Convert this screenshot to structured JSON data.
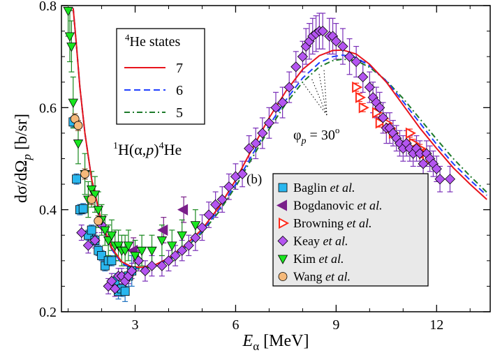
{
  "chart_data": {
    "type": "scatter",
    "title": "",
    "xlabel": "E",
    "xlabel_sub": "α",
    "xlabel_unit": " [MeV]",
    "ylabel": "dσ/dΩ",
    "ylabel_sub": "p",
    "ylabel_unit": " [b/sr]",
    "xlim": [
      0.8,
      13.6
    ],
    "ylim": [
      0.2,
      0.8
    ],
    "x_ticks": [
      3,
      6,
      9,
      12
    ],
    "y_ticks": [
      0.2,
      0.4,
      0.6,
      0.8
    ],
    "x_tick_labels": [
      "3",
      "6",
      "9",
      "12"
    ],
    "y_tick_labels": [
      "0.2",
      "0.4",
      "0.6",
      "0.8"
    ],
    "grid": false,
    "reaction_label": {
      "pre_sup": "1",
      "a": "H(α,",
      "p": "p",
      "b": ")",
      "post_sup": "4",
      "c": "He"
    },
    "panel_label": "(b)",
    "angle_label": {
      "phi": "φ",
      "sub": "p",
      "eq": " = 30",
      "sup": "o"
    },
    "curves_legend": {
      "title_sup": "4",
      "title": "He states",
      "entries": [
        {
          "label": "7",
          "color": "#e8141c",
          "dash": "solid"
        },
        {
          "label": "6",
          "color": "#1f3fff",
          "dash": "dashed"
        },
        {
          "label": "5",
          "color": "#1d7a2a",
          "dash": "dashdot"
        }
      ]
    },
    "curves": [
      {
        "name": "7",
        "color": "#e8141c",
        "x": [
          1.15,
          1.25,
          1.35,
          1.5,
          1.7,
          2.0,
          2.3,
          2.6,
          2.9,
          3.2,
          3.6,
          4.0,
          4.5,
          5.0,
          5.5,
          6.0,
          6.5,
          7.0,
          7.5,
          8.0,
          8.5,
          8.9,
          9.2,
          9.6,
          10.0,
          10.5,
          11.0,
          11.5,
          12.0,
          12.5,
          13.0,
          13.5
        ],
        "y": [
          0.795,
          0.72,
          0.64,
          0.55,
          0.46,
          0.375,
          0.325,
          0.298,
          0.288,
          0.287,
          0.292,
          0.305,
          0.33,
          0.362,
          0.405,
          0.458,
          0.52,
          0.58,
          0.632,
          0.675,
          0.702,
          0.712,
          0.713,
          0.705,
          0.685,
          0.65,
          0.605,
          0.56,
          0.52,
          0.482,
          0.45,
          0.42
        ]
      },
      {
        "name": "6",
        "color": "#1f3fff",
        "x": [
          1.15,
          1.25,
          1.35,
          1.5,
          1.7,
          2.0,
          2.3,
          2.6,
          2.9,
          3.2,
          3.6,
          4.0,
          4.5,
          5.0,
          5.5,
          6.0,
          6.5,
          7.0,
          7.5,
          8.0,
          8.5,
          8.9,
          9.2,
          9.6,
          10.0,
          10.5,
          11.0,
          11.5,
          12.0,
          12.5,
          13.0,
          13.5
        ],
        "y": [
          0.795,
          0.72,
          0.64,
          0.55,
          0.46,
          0.373,
          0.322,
          0.295,
          0.285,
          0.284,
          0.289,
          0.302,
          0.326,
          0.358,
          0.4,
          0.45,
          0.508,
          0.565,
          0.615,
          0.658,
          0.688,
          0.7,
          0.703,
          0.698,
          0.682,
          0.652,
          0.612,
          0.57,
          0.528,
          0.49,
          0.458,
          0.428
        ]
      },
      {
        "name": "5",
        "color": "#1d7a2a",
        "x": [
          1.15,
          1.25,
          1.35,
          1.5,
          1.7,
          2.0,
          2.3,
          2.6,
          2.9,
          3.2,
          3.6,
          4.0,
          4.5,
          5.0,
          5.5,
          6.0,
          6.5,
          7.0,
          7.5,
          8.0,
          8.5,
          8.9,
          9.2,
          9.6,
          10.0,
          10.5,
          11.0,
          11.5,
          12.0,
          12.5,
          13.0,
          13.5
        ],
        "y": [
          0.795,
          0.72,
          0.64,
          0.55,
          0.46,
          0.373,
          0.322,
          0.295,
          0.285,
          0.284,
          0.289,
          0.302,
          0.325,
          0.355,
          0.396,
          0.445,
          0.502,
          0.558,
          0.608,
          0.65,
          0.68,
          0.692,
          0.695,
          0.692,
          0.679,
          0.653,
          0.618,
          0.578,
          0.538,
          0.5,
          0.466,
          0.434
        ]
      }
    ],
    "series": [
      {
        "name": "Baglin",
        "name_italic": "et al.",
        "marker": "square",
        "color": "#29b7ef",
        "x": [
          1.15,
          1.25,
          1.35,
          1.45,
          1.6,
          1.7,
          1.8,
          1.9,
          2.0,
          2.1,
          2.2,
          2.3,
          2.4,
          2.5,
          2.6,
          2.7,
          2.8,
          2.9
        ],
        "y": [
          0.572,
          0.46,
          0.4,
          0.402,
          0.35,
          0.36,
          0.34,
          0.32,
          0.31,
          0.29,
          0.3,
          0.3,
          0.26,
          0.24,
          0.245,
          0.24,
          0.27,
          0.28
        ],
        "err": [
          0.01,
          0.01,
          0.01,
          0.01,
          0.01,
          0.01,
          0.01,
          0.01,
          0.01,
          0.01,
          0.01,
          0.01,
          0.015,
          0.015,
          0.015,
          0.02,
          0.02,
          0.03
        ]
      },
      {
        "name": "Bogdanovic",
        "name_italic": "et al.",
        "marker": "triangle-left",
        "color": "#d6a96f",
        "x": [
          2.95,
          3.85,
          4.45
        ],
        "y": [
          0.32,
          0.36,
          0.4
        ],
        "err": [
          0.025,
          0.025,
          0.025
        ]
      },
      {
        "name": "Browning",
        "name_italic": "et al.",
        "marker": "triangle-right",
        "color": "#ff2a1a",
        "x": [
          9.6,
          9.7,
          9.8,
          10.2,
          10.3,
          10.5,
          10.6,
          10.7,
          11.2,
          11.3,
          11.5,
          11.6,
          11.7
        ],
        "y": [
          0.64,
          0.62,
          0.6,
          0.59,
          0.57,
          0.57,
          0.56,
          0.55,
          0.55,
          0.53,
          0.52,
          0.51,
          0.5
        ],
        "err": [
          0.008,
          0.008,
          0.008,
          0.008,
          0.008,
          0.008,
          0.008,
          0.008,
          0.008,
          0.008,
          0.008,
          0.008,
          0.008
        ]
      },
      {
        "name": "Keay",
        "name_italic": "et al.",
        "marker": "diamond",
        "color": "#b455f0",
        "x": [
          1.4,
          1.6,
          1.8,
          2.0,
          2.2,
          2.3,
          2.4,
          2.5,
          2.6,
          2.7,
          2.8,
          2.9,
          3.1,
          3.3,
          3.5,
          3.8,
          4.0,
          4.2,
          4.4,
          4.6,
          4.8,
          5.0,
          5.2,
          5.4,
          5.6,
          5.8,
          6.0,
          6.2,
          6.4,
          6.6,
          6.8,
          7.0,
          7.2,
          7.4,
          7.6,
          7.8,
          8.0,
          8.1,
          8.2,
          8.3,
          8.4,
          8.5,
          8.6,
          8.8,
          8.9,
          9.0,
          9.2,
          9.4,
          9.6,
          9.8,
          10.0,
          10.1,
          10.2,
          10.3,
          10.4,
          10.5,
          10.6,
          10.7,
          10.8,
          10.9,
          11.0,
          11.1,
          11.2,
          11.3,
          11.4,
          11.5,
          11.6,
          11.7,
          11.8,
          11.9,
          12.0,
          12.1,
          12.4
        ],
        "y": [
          0.355,
          0.33,
          0.34,
          0.37,
          0.25,
          0.26,
          0.245,
          0.27,
          0.27,
          0.26,
          0.27,
          0.28,
          0.3,
          0.28,
          0.29,
          0.29,
          0.3,
          0.31,
          0.32,
          0.33,
          0.345,
          0.365,
          0.39,
          0.41,
          0.42,
          0.445,
          0.465,
          0.47,
          0.52,
          0.53,
          0.55,
          0.57,
          0.6,
          0.61,
          0.64,
          0.68,
          0.7,
          0.72,
          0.73,
          0.74,
          0.745,
          0.75,
          0.75,
          0.74,
          0.74,
          0.73,
          0.72,
          0.7,
          0.69,
          0.66,
          0.64,
          0.62,
          0.61,
          0.6,
          0.58,
          0.56,
          0.56,
          0.55,
          0.54,
          0.53,
          0.52,
          0.53,
          0.52,
          0.51,
          0.52,
          0.51,
          0.49,
          0.51,
          0.5,
          0.49,
          0.48,
          0.46,
          0.46
        ],
        "err": [
          0.015,
          0.015,
          0.015,
          0.015,
          0.015,
          0.015,
          0.015,
          0.015,
          0.015,
          0.015,
          0.015,
          0.015,
          0.02,
          0.02,
          0.02,
          0.02,
          0.02,
          0.02,
          0.02,
          0.02,
          0.025,
          0.025,
          0.025,
          0.025,
          0.025,
          0.025,
          0.025,
          0.025,
          0.025,
          0.03,
          0.03,
          0.03,
          0.03,
          0.03,
          0.03,
          0.03,
          0.03,
          0.035,
          0.035,
          0.035,
          0.035,
          0.035,
          0.035,
          0.035,
          0.035,
          0.035,
          0.035,
          0.035,
          0.03,
          0.03,
          0.03,
          0.03,
          0.03,
          0.03,
          0.03,
          0.03,
          0.03,
          0.025,
          0.025,
          0.025,
          0.025,
          0.025,
          0.025,
          0.025,
          0.025,
          0.025,
          0.025,
          0.025,
          0.025,
          0.025,
          0.025,
          0.025,
          0.025
        ]
      },
      {
        "name": "Kim",
        "name_italic": "et al.",
        "marker": "triangle-down",
        "color": "#19e61f",
        "x": [
          1.0,
          1.05,
          1.1,
          1.15,
          1.3,
          1.5,
          1.6,
          1.7,
          1.8,
          1.9,
          2.0,
          2.1,
          2.2,
          2.3,
          2.4,
          2.5,
          2.6,
          2.7,
          2.8,
          3.0,
          3.2,
          3.5,
          3.8,
          4.1,
          4.4,
          4.8
        ],
        "y": [
          0.79,
          0.74,
          0.72,
          0.61,
          0.53,
          0.47,
          0.42,
          0.44,
          0.43,
          0.4,
          0.38,
          0.36,
          0.34,
          0.35,
          0.33,
          0.33,
          0.32,
          0.32,
          0.33,
          0.31,
          0.32,
          0.32,
          0.34,
          0.33,
          0.35,
          0.37
        ],
        "err": [
          0.05,
          0.05,
          0.05,
          0.05,
          0.04,
          0.04,
          0.035,
          0.035,
          0.035,
          0.035,
          0.03,
          0.03,
          0.03,
          0.03,
          0.03,
          0.03,
          0.03,
          0.03,
          0.03,
          0.03,
          0.03,
          0.03,
          0.03,
          0.03,
          0.03,
          0.03
        ]
      },
      {
        "name": "Wang",
        "name_italic": "et al.",
        "marker": "circle",
        "color": "#f5b97a",
        "x": [
          1.2,
          1.3,
          1.5,
          1.7,
          1.9
        ],
        "y": [
          0.578,
          0.565,
          0.47,
          0.42,
          0.378
        ],
        "err": [
          0.01,
          0.01,
          0.01,
          0.01,
          0.01
        ]
      }
    ]
  }
}
